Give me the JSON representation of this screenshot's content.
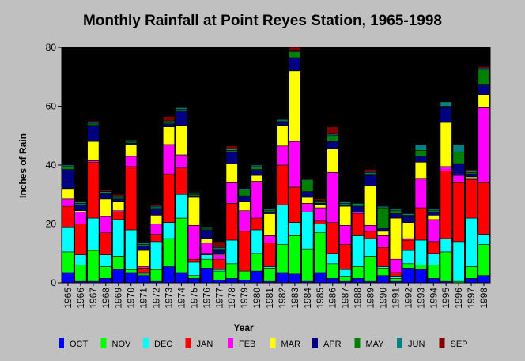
{
  "chart_data": {
    "type": "bar",
    "stacked": true,
    "title": "Monthly Rainfall at Point Reyes Station, 1965-1998",
    "xlabel": "Year",
    "ylabel": "Inches of Rain",
    "ylim": [
      0,
      80
    ],
    "yticks": [
      0,
      20,
      40,
      60,
      80
    ],
    "grid": false,
    "legend_position": "bottom",
    "categories": [
      "1965",
      "1966",
      "1967",
      "1968",
      "1969",
      "1970",
      "1971",
      "1972",
      "1973",
      "1974",
      "1975",
      "1976",
      "1977",
      "1978",
      "1979",
      "1980",
      "1981",
      "1982",
      "1983",
      "1984",
      "1985",
      "1986",
      "1987",
      "1988",
      "1989",
      "1990",
      "1991",
      "1992",
      "1993",
      "1994",
      "1995",
      "1996",
      "1997",
      "1998"
    ],
    "series": [
      {
        "name": "OCT",
        "color": "#0000ff",
        "values": [
          3.5,
          0.5,
          0.5,
          1.5,
          4.5,
          3.5,
          2.5,
          0.5,
          5.5,
          3.5,
          1.5,
          5.0,
          1.0,
          1.5,
          1.0,
          4.0,
          0.5,
          3.5,
          3.0,
          0.5,
          3.5,
          1.5,
          0.5,
          1.5,
          0.5,
          2.5,
          0.5,
          5.0,
          4.5,
          1.5,
          0.5,
          0.0,
          1.5,
          2.5
        ]
      },
      {
        "name": "NOV",
        "color": "#00ff00",
        "values": [
          7.0,
          5.5,
          10.5,
          4.0,
          4.5,
          1.0,
          0.5,
          4.0,
          9.5,
          18.5,
          1.0,
          3.0,
          3.0,
          5.0,
          3.0,
          6.0,
          4.5,
          9.5,
          13.0,
          11.0,
          13.5,
          5.0,
          1.5,
          4.0,
          8.5,
          2.5,
          1.0,
          1.5,
          1.5,
          4.5,
          10.0,
          0.5,
          4.0,
          10.5
        ]
      },
      {
        "name": "DEC",
        "color": "#00ffff",
        "values": [
          8.5,
          3.5,
          11.0,
          4.0,
          12.5,
          13.5,
          0.5,
          9.5,
          5.5,
          8.0,
          4.5,
          1.5,
          0.5,
          8.0,
          0.0,
          8.0,
          0.5,
          13.5,
          4.5,
          12.5,
          3.0,
          3.5,
          2.5,
          10.5,
          6.0,
          0.5,
          0.5,
          4.5,
          8.5,
          4.0,
          4.5,
          13.5,
          16.5,
          3.5
        ]
      },
      {
        "name": "JAN",
        "color": "#ff0000",
        "values": [
          7.0,
          10.5,
          19.0,
          7.5,
          2.5,
          21.5,
          1.5,
          2.5,
          16.5,
          9.0,
          1.0,
          0.5,
          3.5,
          12.5,
          13.5,
          4.0,
          8.0,
          13.5,
          12.0,
          0.0,
          1.0,
          10.5,
          8.5,
          7.5,
          2.5,
          6.5,
          1.5,
          3.5,
          11.0,
          4.0,
          23.0,
          20.0,
          13.0,
          17.5
        ]
      },
      {
        "name": "FEB",
        "color": "#ff00ff",
        "values": [
          2.5,
          4.0,
          0.5,
          5.5,
          0.5,
          3.5,
          0.5,
          3.5,
          10.0,
          4.5,
          11.5,
          3.5,
          1.5,
          7.0,
          7.0,
          12.5,
          2.5,
          6.5,
          15.5,
          3.0,
          4.5,
          17.0,
          6.5,
          0.5,
          2.0,
          4.0,
          4.5,
          0.5,
          10.0,
          7.5,
          1.5,
          2.5,
          0.5,
          25.5
        ]
      },
      {
        "name": "MAR",
        "color": "#ffff00",
        "values": [
          3.5,
          0.5,
          6.5,
          6.0,
          3.0,
          4.0,
          5.5,
          3.0,
          6.0,
          10.0,
          9.5,
          1.5,
          0.5,
          6.5,
          3.0,
          2.0,
          7.5,
          7.0,
          24.0,
          2.0,
          1.0,
          8.0,
          6.5,
          0.0,
          13.5,
          1.5,
          14.0,
          5.5,
          5.5,
          1.5,
          15.0,
          0.0,
          0.5,
          4.5
        ]
      },
      {
        "name": "APR",
        "color": "#000080",
        "values": [
          6.5,
          2.0,
          5.5,
          1.5,
          1.0,
          0.5,
          1.5,
          2.0,
          1.0,
          5.0,
          0.5,
          3.0,
          1.0,
          4.0,
          2.0,
          2.0,
          0.5,
          1.0,
          4.5,
          2.0,
          0.5,
          2.5,
          0.5,
          2.0,
          3.5,
          1.0,
          1.5,
          2.0,
          2.0,
          1.0,
          5.0,
          4.0,
          1.0,
          3.5
        ]
      },
      {
        "name": "MAY",
        "color": "#008000",
        "values": [
          1.0,
          0.5,
          0.5,
          0.5,
          0.5,
          0.5,
          0.5,
          0.5,
          0.5,
          0.5,
          0.5,
          0.5,
          0.5,
          0.5,
          2.0,
          1.0,
          0.5,
          0.5,
          2.0,
          4.0,
          0.5,
          2.0,
          0.5,
          0.5,
          0.5,
          7.0,
          1.0,
          0.5,
          2.0,
          0.5,
          0.5,
          4.0,
          0.5,
          5.0
        ]
      },
      {
        "name": "JUN",
        "color": "#008080",
        "values": [
          0.5,
          0.5,
          0.5,
          0.5,
          0.5,
          0.5,
          0.5,
          0.5,
          0.5,
          0.5,
          0.5,
          0.5,
          0.5,
          0.5,
          0.5,
          0.5,
          0.5,
          0.5,
          0.5,
          0.5,
          0.5,
          0.5,
          0.5,
          0.5,
          0.5,
          0.5,
          0.5,
          0.5,
          2.0,
          0.5,
          1.5,
          2.5,
          0.5,
          0.5
        ]
      },
      {
        "name": "SEP",
        "color": "#800000",
        "values": [
          0.0,
          0.5,
          0.5,
          0.5,
          0.5,
          0.0,
          0.0,
          0.5,
          1.5,
          0.0,
          0.0,
          0.0,
          2.0,
          1.0,
          0.0,
          0.0,
          0.0,
          0.0,
          1.0,
          0.0,
          0.5,
          2.5,
          0.0,
          0.0,
          1.0,
          0.0,
          0.0,
          0.0,
          0.0,
          0.0,
          0.0,
          0.0,
          0.5,
          0.5
        ]
      }
    ]
  }
}
